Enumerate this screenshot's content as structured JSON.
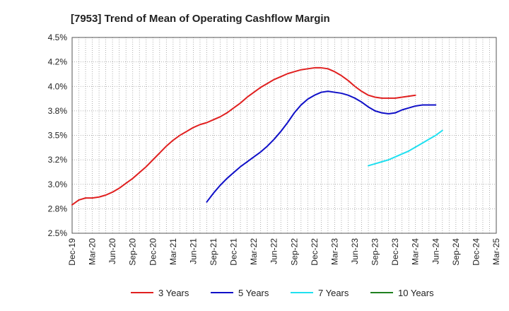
{
  "chart_data": {
    "type": "line",
    "title": "[7953]  Trend of Mean of Operating Cashflow Margin",
    "xlabel": "",
    "ylabel": "",
    "x_ticks": [
      "Dec-19",
      "Mar-20",
      "Jun-20",
      "Sep-20",
      "Dec-20",
      "Mar-21",
      "Jun-21",
      "Sep-21",
      "Dec-21",
      "Mar-22",
      "Jun-22",
      "Sep-22",
      "Dec-22",
      "Mar-23",
      "Jun-23",
      "Sep-23",
      "Dec-23",
      "Mar-24",
      "Jun-24",
      "Sep-24",
      "Dec-24",
      "Mar-25"
    ],
    "y_ticks": [
      "2.5%",
      "2.8%",
      "3.0%",
      "3.2%",
      "3.5%",
      "3.8%",
      "4.0%",
      "4.2%",
      "4.5%"
    ],
    "ylim": [
      2.5,
      4.5
    ],
    "grid": true,
    "legend_position": "bottom",
    "series": [
      {
        "name": "3 Years",
        "color": "#e02020",
        "start_index": 0,
        "values": [
          2.79,
          2.84,
          2.86,
          2.86,
          2.87,
          2.89,
          2.92,
          2.96,
          3.01,
          3.06,
          3.12,
          3.18,
          3.25,
          3.32,
          3.39,
          3.45,
          3.5,
          3.54,
          3.58,
          3.61,
          3.63,
          3.66,
          3.69,
          3.73,
          3.78,
          3.83,
          3.89,
          3.94,
          3.99,
          4.03,
          4.07,
          4.1,
          4.13,
          4.15,
          4.17,
          4.18,
          4.19,
          4.19,
          4.18,
          4.15,
          4.11,
          4.06,
          4.0,
          3.95,
          3.91,
          3.89,
          3.88,
          3.88,
          3.88,
          3.89,
          3.9,
          3.91
        ]
      },
      {
        "name": "5 Years",
        "color": "#1010c8",
        "start_index": 20,
        "values": [
          2.82,
          2.91,
          2.99,
          3.06,
          3.12,
          3.18,
          3.23,
          3.28,
          3.33,
          3.39,
          3.46,
          3.54,
          3.63,
          3.73,
          3.81,
          3.87,
          3.91,
          3.94,
          3.95,
          3.94,
          3.93,
          3.91,
          3.88,
          3.84,
          3.79,
          3.75,
          3.73,
          3.72,
          3.73,
          3.76,
          3.78,
          3.8,
          3.81,
          3.81,
          3.81
        ]
      },
      {
        "name": "7 Years",
        "color": "#20e0f0",
        "start_index": 44,
        "values": [
          3.19,
          3.21,
          3.23,
          3.25,
          3.28,
          3.31,
          3.34,
          3.38,
          3.42,
          3.46,
          3.5,
          3.55
        ]
      },
      {
        "name": "10 Years",
        "color": "#208020",
        "start_index": 0,
        "values": []
      }
    ]
  }
}
